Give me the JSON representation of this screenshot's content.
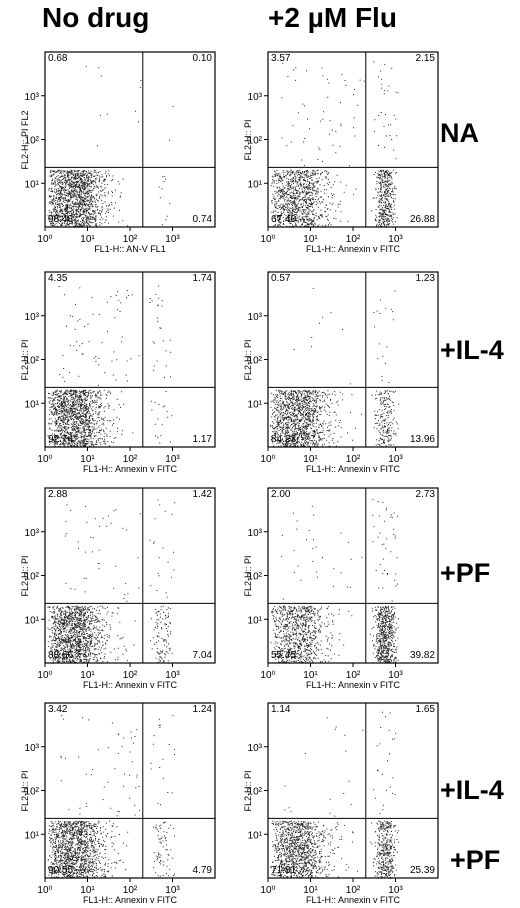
{
  "columns": [
    "No drug",
    "+2 µM Flu"
  ],
  "row_labels": [
    "NA",
    "+IL-4",
    "+PF",
    "+IL-4",
    "+PF"
  ],
  "chart_data": [
    {
      "type": "scatter",
      "panel": "NA / No drug",
      "xlabel": "FL1-H:: AN-V FL1",
      "ylabel": "FL2-H:: PI FL2",
      "xscale": "log",
      "yscale": "log",
      "xlim": [
        1,
        10000
      ],
      "ylim": [
        1,
        10000
      ],
      "xticks": [
        "10⁰",
        "10¹",
        "10²",
        "10³"
      ],
      "yticks": [
        "10¹",
        "10²",
        "10³"
      ],
      "gates": {
        "x": 200,
        "y": 23
      },
      "quadrants": {
        "upper_left": "0.68",
        "upper_right": "0.10",
        "lower_left": "98.48",
        "lower_right": "0.74"
      }
    },
    {
      "type": "scatter",
      "panel": "NA / +2 µM Flu",
      "xlabel": "FL1-H:: Annexin v FITC",
      "ylabel": "FL2-H:: PI",
      "xscale": "log",
      "yscale": "log",
      "xlim": [
        1,
        10000
      ],
      "ylim": [
        1,
        10000
      ],
      "xticks": [
        "10⁰",
        "10¹",
        "10²",
        "10³"
      ],
      "yticks": [
        "10¹",
        "10²",
        "10³"
      ],
      "gates": {
        "x": 200,
        "y": 23
      },
      "quadrants": {
        "upper_left": "3.57",
        "upper_right": "2.15",
        "lower_left": "67.40",
        "lower_right": "26.88"
      }
    },
    {
      "type": "scatter",
      "panel": "+IL-4 / No drug",
      "xlabel": "FL1-H:: Annexin v FITC",
      "ylabel": "FL2-H:: PI",
      "xscale": "log",
      "yscale": "log",
      "xlim": [
        1,
        10000
      ],
      "ylim": [
        1,
        10000
      ],
      "xticks": [
        "10⁰",
        "10¹",
        "10²",
        "10³"
      ],
      "yticks": [
        "10¹",
        "10²",
        "10³"
      ],
      "gates": {
        "x": 200,
        "y": 23
      },
      "quadrants": {
        "upper_left": "4.35",
        "upper_right": "1.74",
        "lower_left": "92.74",
        "lower_right": "1.17"
      }
    },
    {
      "type": "scatter",
      "panel": "+IL-4 / +2 µM Flu",
      "xlabel": "FL1-H:: Annexin v FITC",
      "ylabel": "FL2-H:: PI",
      "xscale": "log",
      "yscale": "log",
      "xlim": [
        1,
        10000
      ],
      "ylim": [
        1,
        10000
      ],
      "xticks": [
        "10⁰",
        "10¹",
        "10²",
        "10³"
      ],
      "yticks": [
        "10¹",
        "10²",
        "10³"
      ],
      "gates": {
        "x": 200,
        "y": 23
      },
      "quadrants": {
        "upper_left": "0.57",
        "upper_right": "1.23",
        "lower_left": "84.23",
        "lower_right": "13.96"
      }
    },
    {
      "type": "scatter",
      "panel": "+PF / No drug",
      "xlabel": "FL1-H:: Annexin v FITC",
      "ylabel": "FL2-H:: PI",
      "xscale": "log",
      "yscale": "log",
      "xlim": [
        1,
        10000
      ],
      "ylim": [
        1,
        10000
      ],
      "xticks": [
        "10⁰",
        "10¹",
        "10²",
        "10³"
      ],
      "yticks": [
        "10¹",
        "10²",
        "10³"
      ],
      "gates": {
        "x": 200,
        "y": 23
      },
      "quadrants": {
        "upper_left": "2.88",
        "upper_right": "1.42",
        "lower_left": "88.66",
        "lower_right": "7.04"
      }
    },
    {
      "type": "scatter",
      "panel": "+PF / +2 µM Flu",
      "xlabel": "FL1-H:: Annexin v FITC",
      "ylabel": "FL2-H:: PI",
      "xscale": "log",
      "yscale": "log",
      "xlim": [
        1,
        10000
      ],
      "ylim": [
        1,
        10000
      ],
      "xticks": [
        "10⁰",
        "10¹",
        "10²",
        "10³"
      ],
      "yticks": [
        "10¹",
        "10²",
        "10³"
      ],
      "gates": {
        "x": 200,
        "y": 23
      },
      "quadrants": {
        "upper_left": "2.00",
        "upper_right": "2.73",
        "lower_left": "55.45",
        "lower_right": "39.82"
      }
    },
    {
      "type": "scatter",
      "panel": "+IL-4 +PF / No drug",
      "xlabel": "FL1-H:: Annexin v FITC",
      "ylabel": "FL2-H:: PI",
      "xscale": "log",
      "yscale": "log",
      "xlim": [
        1,
        10000
      ],
      "ylim": [
        1,
        10000
      ],
      "xticks": [
        "10⁰",
        "10¹",
        "10²",
        "10³"
      ],
      "yticks": [
        "10¹",
        "10²",
        "10³"
      ],
      "gates": {
        "x": 200,
        "y": 23
      },
      "quadrants": {
        "upper_left": "3.42",
        "upper_right": "1.24",
        "lower_left": "90.55",
        "lower_right": "4.79"
      }
    },
    {
      "type": "scatter",
      "panel": "+IL-4 +PF / +2 µM Flu",
      "xlabel": "FL1-H:: Annexin v FITC",
      "ylabel": "FL2-H:: PI",
      "xscale": "log",
      "yscale": "log",
      "xlim": [
        1,
        10000
      ],
      "ylim": [
        1,
        10000
      ],
      "xticks": [
        "10⁰",
        "10¹",
        "10²",
        "10³"
      ],
      "yticks": [
        "10¹",
        "10²",
        "10³"
      ],
      "gates": {
        "x": 200,
        "y": 23
      },
      "quadrants": {
        "upper_left": "1.14",
        "upper_right": "1.65",
        "lower_left": "71.81",
        "lower_right": "25.39"
      }
    }
  ]
}
